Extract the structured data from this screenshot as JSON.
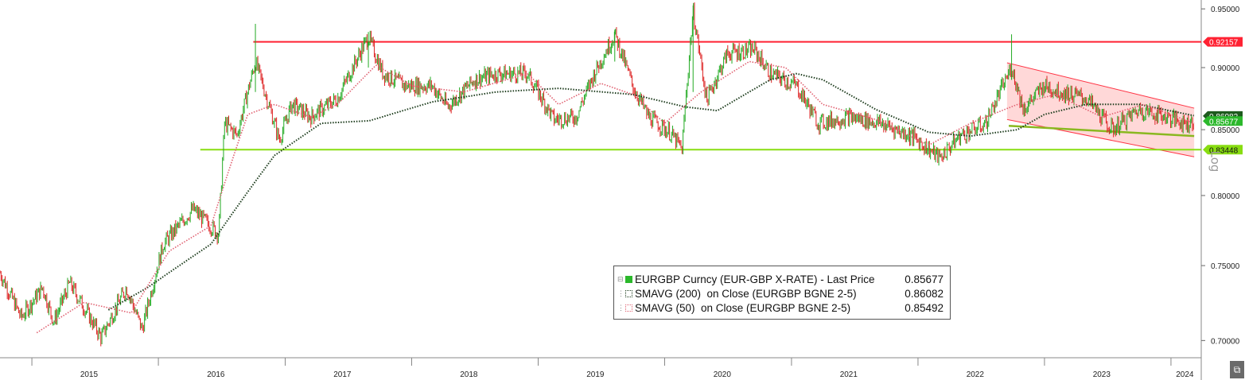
{
  "chart_data": {
    "type": "candlestick",
    "title": "",
    "log_scale": true,
    "y_axis_side": "right",
    "ylim": [
      0.69,
      0.955
    ],
    "y_ticks": [
      "0.95000",
      "0.90000",
      "0.85000",
      "0.80000",
      "0.75000",
      "0.70000"
    ],
    "x_labels": [
      "2015",
      "2016",
      "2017",
      "2018",
      "2019",
      "2020",
      "2021",
      "2022",
      "2023",
      "2024"
    ],
    "x_range": [
      "2014-10-01",
      "2024-03-10"
    ],
    "series": [
      {
        "name": "EURGBP Curncy (EUR-GBP X-RATE) - Last Price",
        "last": "0.85677",
        "color": "#2bb82b",
        "anchors": [
          [
            "2014-10-01",
            0.745
          ],
          [
            "2014-12-01",
            0.715
          ],
          [
            "2015-02-01",
            0.735
          ],
          [
            "2015-03-05",
            0.712
          ],
          [
            "2015-04-20",
            0.738
          ],
          [
            "2015-07-20",
            0.702
          ],
          [
            "2015-10-01",
            0.735
          ],
          [
            "2015-11-15",
            0.707
          ],
          [
            "2016-01-15",
            0.765
          ],
          [
            "2016-04-10",
            0.79
          ],
          [
            "2016-06-23",
            0.772
          ],
          [
            "2016-07-10",
            0.855
          ],
          [
            "2016-08-15",
            0.846
          ],
          [
            "2016-10-07",
            0.905
          ],
          [
            "2016-12-15",
            0.842
          ],
          [
            "2017-01-20",
            0.87
          ],
          [
            "2017-03-15",
            0.86
          ],
          [
            "2017-06-01",
            0.875
          ],
          [
            "2017-08-29",
            0.926
          ],
          [
            "2017-10-10",
            0.895
          ],
          [
            "2017-12-15",
            0.885
          ],
          [
            "2018-03-01",
            0.885
          ],
          [
            "2018-04-15",
            0.868
          ],
          [
            "2018-07-01",
            0.89
          ],
          [
            "2018-09-01",
            0.895
          ],
          [
            "2018-12-01",
            0.895
          ],
          [
            "2019-02-15",
            0.858
          ],
          [
            "2019-04-20",
            0.86
          ],
          [
            "2019-06-15",
            0.897
          ],
          [
            "2019-08-10",
            0.928
          ],
          [
            "2019-10-01",
            0.885
          ],
          [
            "2019-11-15",
            0.86
          ],
          [
            "2020-01-15",
            0.848
          ],
          [
            "2020-02-20",
            0.835
          ],
          [
            "2020-03-23",
            0.948
          ],
          [
            "2020-05-01",
            0.873
          ],
          [
            "2020-06-30",
            0.912
          ],
          [
            "2020-09-15",
            0.915
          ],
          [
            "2020-11-01",
            0.895
          ],
          [
            "2021-01-15",
            0.885
          ],
          [
            "2021-03-20",
            0.855
          ],
          [
            "2021-06-15",
            0.86
          ],
          [
            "2021-09-15",
            0.855
          ],
          [
            "2021-12-15",
            0.845
          ],
          [
            "2022-03-05",
            0.828
          ],
          [
            "2022-05-01",
            0.845
          ],
          [
            "2022-07-15",
            0.855
          ],
          [
            "2022-09-28",
            0.9
          ],
          [
            "2022-11-01",
            0.866
          ],
          [
            "2022-12-30",
            0.885
          ],
          [
            "2023-02-15",
            0.88
          ],
          [
            "2023-05-01",
            0.875
          ],
          [
            "2023-07-15",
            0.85
          ],
          [
            "2023-10-01",
            0.866
          ],
          [
            "2023-12-20",
            0.86
          ],
          [
            "2024-02-15",
            0.855
          ],
          [
            "2024-03-08",
            0.857
          ]
        ]
      },
      {
        "name": "SMAVG (200) on Close (EURGBP BGNE 2-5)",
        "last": "0.86082",
        "color": "#1e3d1e",
        "style": "dotted",
        "anchors": [
          [
            "2015-08-10",
            0.72
          ],
          [
            "2015-12-01",
            0.735
          ],
          [
            "2016-06-01",
            0.765
          ],
          [
            "2016-12-01",
            0.83
          ],
          [
            "2017-04-15",
            0.855
          ],
          [
            "2017-09-01",
            0.857
          ],
          [
            "2018-03-01",
            0.872
          ],
          [
            "2018-09-01",
            0.88
          ],
          [
            "2019-03-01",
            0.883
          ],
          [
            "2019-10-01",
            0.878
          ],
          [
            "2020-03-01",
            0.868
          ],
          [
            "2020-06-01",
            0.865
          ],
          [
            "2020-11-01",
            0.89
          ],
          [
            "2021-01-15",
            0.895
          ],
          [
            "2021-04-01",
            0.89
          ],
          [
            "2021-09-01",
            0.866
          ],
          [
            "2022-02-01",
            0.848
          ],
          [
            "2022-06-01",
            0.845
          ],
          [
            "2022-10-15",
            0.85
          ],
          [
            "2023-01-01",
            0.862
          ],
          [
            "2023-05-01",
            0.87
          ],
          [
            "2023-10-01",
            0.87
          ],
          [
            "2024-03-08",
            0.861
          ]
        ]
      },
      {
        "name": "SMAVG (50) on Close (EURGBP BGNE 2-5)",
        "last": "0.85492",
        "color": "#e06070",
        "style": "dotted",
        "anchors": [
          [
            "2015-01-15",
            0.705
          ],
          [
            "2015-06-01",
            0.725
          ],
          [
            "2015-10-15",
            0.718
          ],
          [
            "2016-02-01",
            0.76
          ],
          [
            "2016-06-01",
            0.778
          ],
          [
            "2016-09-15",
            0.862
          ],
          [
            "2016-12-01",
            0.87
          ],
          [
            "2017-03-15",
            0.86
          ],
          [
            "2017-06-01",
            0.87
          ],
          [
            "2017-09-20",
            0.902
          ],
          [
            "2018-01-01",
            0.885
          ],
          [
            "2018-06-01",
            0.88
          ],
          [
            "2018-12-01",
            0.895
          ],
          [
            "2019-03-01",
            0.87
          ],
          [
            "2019-07-01",
            0.887
          ],
          [
            "2019-10-01",
            0.878
          ],
          [
            "2020-01-01",
            0.855
          ],
          [
            "2020-04-15",
            0.88
          ],
          [
            "2020-09-01",
            0.905
          ],
          [
            "2020-12-15",
            0.9
          ],
          [
            "2021-04-01",
            0.87
          ],
          [
            "2021-09-01",
            0.858
          ],
          [
            "2022-02-01",
            0.838
          ],
          [
            "2022-06-01",
            0.855
          ],
          [
            "2022-10-15",
            0.87
          ],
          [
            "2023-02-01",
            0.878
          ],
          [
            "2023-06-15",
            0.86
          ],
          [
            "2023-10-15",
            0.87
          ],
          [
            "2024-03-08",
            0.855
          ]
        ]
      }
    ],
    "horizontal_lines": [
      {
        "value": 0.92157,
        "label": "0.92157",
        "color": "#ff2233",
        "from": "2016-10-01"
      },
      {
        "value": 0.83448,
        "label": "0.83448",
        "color": "#88dd11",
        "from": "2016-05-01"
      }
    ],
    "trend_channel": {
      "color": "#ffb8b8",
      "upper": [
        [
          "2022-09-15",
          0.904
        ],
        [
          "2024-03-08",
          0.867
        ]
      ],
      "lower": [
        [
          "2022-09-15",
          0.858
        ],
        [
          "2024-03-08",
          0.829
        ]
      ]
    },
    "support_line": {
      "color": "#8ab820",
      "points": [
        [
          "2022-09-20",
          0.853
        ],
        [
          "2024-03-08",
          0.845
        ]
      ]
    },
    "price_tags": [
      {
        "label": "0.92157",
        "value": 0.92157,
        "color": "#ff2233"
      },
      {
        "label": "0.86082",
        "value": 0.86082,
        "color": "#1e5a1e"
      },
      {
        "label": "0.85677",
        "value": 0.85677,
        "color": "#2bb82b"
      },
      {
        "label": "0.83448",
        "value": 0.83448,
        "color": "#88dd11"
      }
    ],
    "scale_label": "Log"
  },
  "legend": {
    "rows": [
      {
        "tree": "⊟",
        "label": "EURGBP Curncy (EUR-GBP X-RATE) - Last Price",
        "value": "0.85677",
        "color": "#2bb82b",
        "filled": true
      },
      {
        "tree": "⋮",
        "label": "SMAVG (200)  on Close (EURGBP BGNE 2-5)",
        "value": "0.86082",
        "color": "#1e3d1e",
        "filled": false
      },
      {
        "tree": "⋮",
        "label": "SMAVG (50)  on Close (EURGBP BGNE 2-5)",
        "value": "0.85492",
        "color": "#e06070",
        "filled": false
      }
    ]
  },
  "corner_icon": "expand-icon"
}
